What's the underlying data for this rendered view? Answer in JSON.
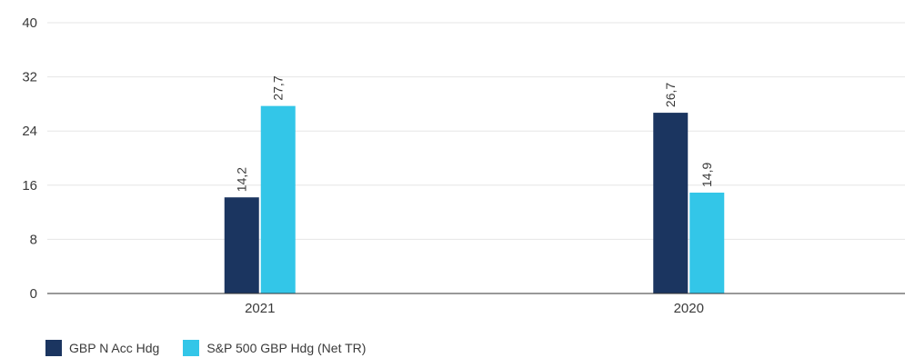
{
  "chart_data": {
    "type": "bar",
    "categories": [
      "2021",
      "2020"
    ],
    "series": [
      {
        "name": "GBP N Acc Hdg",
        "values": [
          14.2,
          26.7
        ],
        "labels": [
          "14,2",
          "26,7"
        ],
        "color": "#1b3560"
      },
      {
        "name": "S&P 500 GBP Hdg (Net TR)",
        "values": [
          27.7,
          14.9
        ],
        "labels": [
          "27,7",
          "14,9"
        ],
        "color": "#33c6e8"
      }
    ],
    "y_ticks": [
      0,
      8,
      16,
      24,
      32,
      40
    ],
    "ylim": [
      0,
      40
    ],
    "grid": true,
    "legend_position": "bottom-left"
  }
}
